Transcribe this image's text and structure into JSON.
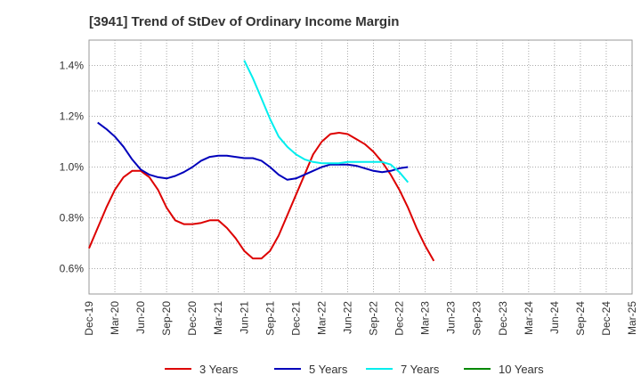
{
  "chart_data": {
    "type": "line",
    "title": "[3941]  Trend of StDev of Ordinary Income Margin",
    "xlabel": "",
    "ylabel": "",
    "x_tick_labels": [
      "Dec-19",
      "Mar-20",
      "Jun-20",
      "Sep-20",
      "Dec-20",
      "Mar-21",
      "Jun-21",
      "Sep-21",
      "Dec-21",
      "Mar-22",
      "Jun-22",
      "Sep-22",
      "Dec-22",
      "Mar-23",
      "Jun-23",
      "Sep-23",
      "Dec-23",
      "Mar-24",
      "Jun-24",
      "Sep-24",
      "Dec-24",
      "Mar-25"
    ],
    "y_ticks": [
      "0.6%",
      "0.8%",
      "1.0%",
      "1.2%",
      "1.4%"
    ],
    "y_tick_values": [
      0.6,
      0.8,
      1.0,
      1.2,
      1.4
    ],
    "ylim": [
      0.5,
      1.5
    ],
    "grid": true,
    "legend_position": "bottom",
    "series": [
      {
        "name": "3 Years",
        "color": "#dd0000",
        "start_index": 0,
        "values": [
          0.68,
          0.76,
          0.84,
          0.91,
          0.96,
          0.985,
          0.985,
          0.96,
          0.91,
          0.84,
          0.79,
          0.775,
          0.775,
          0.78,
          0.79,
          0.79,
          0.76,
          0.72,
          0.67,
          0.64,
          0.64,
          0.67,
          0.73,
          0.81,
          0.89,
          0.97,
          1.05,
          1.1,
          1.13,
          1.135,
          1.13,
          1.11,
          1.09,
          1.06,
          1.02,
          0.97,
          0.91,
          0.84,
          0.76,
          0.69,
          0.63
        ]
      },
      {
        "name": "5 Years",
        "color": "#0000bb",
        "start_index": 1,
        "values": [
          1.175,
          1.15,
          1.12,
          1.08,
          1.03,
          0.99,
          0.97,
          0.96,
          0.955,
          0.965,
          0.98,
          1.0,
          1.025,
          1.04,
          1.045,
          1.045,
          1.04,
          1.035,
          1.035,
          1.025,
          1.0,
          0.97,
          0.95,
          0.955,
          0.97,
          0.985,
          1.0,
          1.01,
          1.01,
          1.01,
          1.005,
          0.995,
          0.985,
          0.98,
          0.985,
          0.995,
          1.0
        ]
      },
      {
        "name": "7 Years",
        "color": "#00eeee",
        "start_index": 18,
        "values": [
          1.42,
          1.35,
          1.27,
          1.19,
          1.12,
          1.08,
          1.05,
          1.03,
          1.02,
          1.015,
          1.015,
          1.015,
          1.02,
          1.02,
          1.02,
          1.02,
          1.02,
          1.01,
          0.98,
          0.94
        ]
      },
      {
        "name": "10 Years",
        "color": "#008800",
        "start_index": 0,
        "values": []
      }
    ]
  }
}
